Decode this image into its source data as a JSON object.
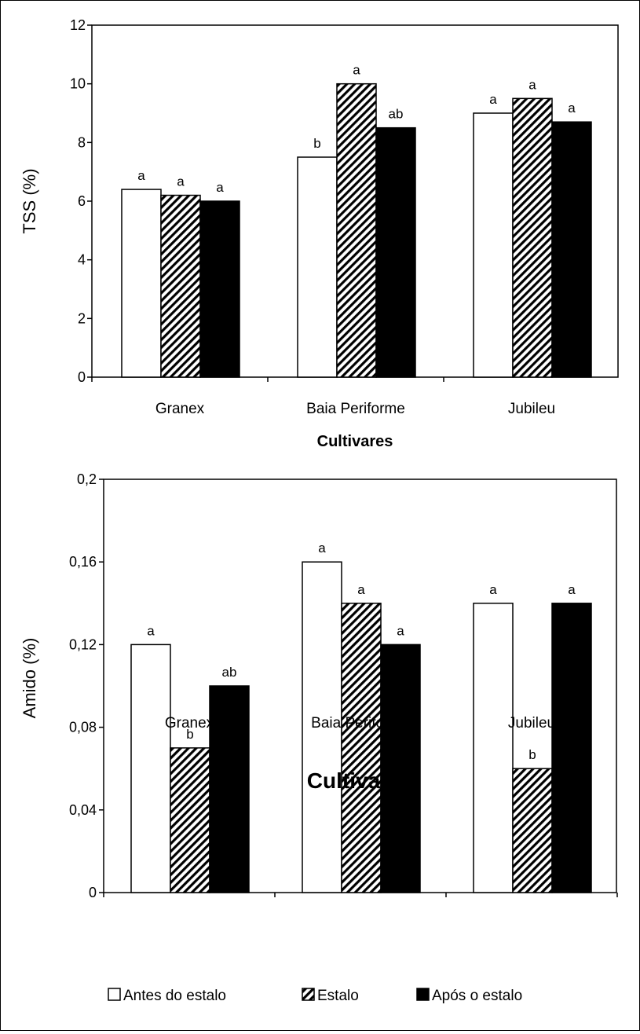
{
  "chart_data": [
    {
      "type": "bar",
      "categories": [
        "Granex",
        "Baia Periforme",
        "Jubileu"
      ],
      "series": [
        {
          "name": "Antes do estalo",
          "values": [
            6.4,
            7.5,
            9.0
          ],
          "labels": [
            "a",
            "b",
            "a"
          ],
          "pattern": "white"
        },
        {
          "name": "Estalo",
          "values": [
            6.2,
            10.0,
            9.5
          ],
          "labels": [
            "a",
            "a",
            "a"
          ],
          "pattern": "hatch"
        },
        {
          "name": "Após o estalo",
          "values": [
            6.0,
            8.5,
            8.7
          ],
          "labels": [
            "a",
            "ab",
            "a"
          ],
          "pattern": "black"
        }
      ],
      "xlabel": "Cultivares",
      "ylabel": "TSS (%)",
      "ylim": [
        0,
        12
      ],
      "yticks": [
        "0",
        "2",
        "4",
        "6",
        "8",
        "10",
        "12"
      ],
      "grid": false
    },
    {
      "type": "bar",
      "categories": [
        "Granex",
        "Baia Periforme",
        "Jubileu"
      ],
      "series": [
        {
          "name": "Antes do estalo",
          "values": [
            0.12,
            0.16,
            0.14
          ],
          "labels": [
            "a",
            "a",
            "a"
          ],
          "pattern": "white"
        },
        {
          "name": "Estalo",
          "values": [
            0.07,
            0.14,
            0.06
          ],
          "labels": [
            "b",
            "a",
            "b"
          ],
          "pattern": "hatch"
        },
        {
          "name": "Após o estalo",
          "values": [
            0.1,
            0.12,
            0.14
          ],
          "labels": [
            "ab",
            "a",
            "a"
          ],
          "pattern": "black"
        }
      ],
      "xlabel": "Cultivares",
      "ylabel": "Amido (%)",
      "ylim": [
        0,
        0.2
      ],
      "yticks": [
        "0",
        "0,04",
        "0,08",
        "0,12",
        "0,16",
        "0,2"
      ],
      "grid": false
    }
  ],
  "legend": {
    "placement": "bottom",
    "items": [
      "Antes do estalo",
      "Estalo",
      "Após o estalo"
    ]
  }
}
